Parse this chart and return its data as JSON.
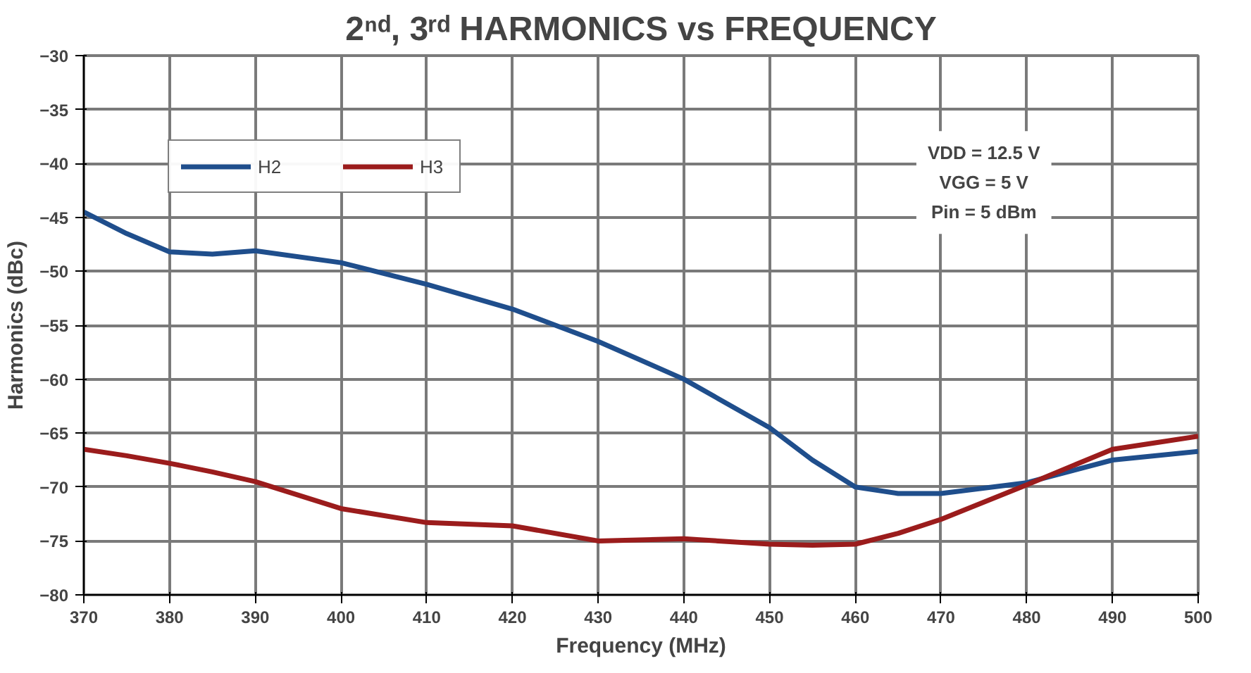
{
  "chart_data": {
    "type": "line",
    "title": "2ⁿᵈ, 3ʳᵈ HARMONICS vs FREQUENCY",
    "xlabel": "Frequency (MHz)",
    "ylabel": "Harmonics (dBc)",
    "x": [
      370,
      375,
      380,
      385,
      390,
      400,
      410,
      420,
      430,
      440,
      450,
      455,
      460,
      465,
      470,
      480,
      490,
      500
    ],
    "series": [
      {
        "name": "H2",
        "color": "#1f4e8c",
        "values": [
          -44.5,
          -46.5,
          -48.2,
          -48.4,
          -48.1,
          -49.2,
          -51.2,
          -53.5,
          -56.5,
          -60,
          -64.5,
          -67.5,
          -70,
          -70.6,
          -70.6,
          -69.6,
          -67.5,
          -66.7
        ]
      },
      {
        "name": "H3",
        "color": "#9b1c1c",
        "values": [
          -66.5,
          -67.1,
          -67.8,
          -68.6,
          -69.5,
          -72,
          -73.3,
          -73.6,
          -75,
          -74.8,
          -75.3,
          -75.4,
          -75.3,
          -74.3,
          -73,
          -69.8,
          -66.5,
          -65.3
        ]
      }
    ],
    "xlim": [
      370,
      500
    ],
    "xticks": [
      370,
      380,
      390,
      400,
      410,
      420,
      430,
      440,
      450,
      460,
      470,
      480,
      490,
      500
    ],
    "ylim": [
      -80,
      -30
    ],
    "yticks": [
      -80,
      -75,
      -70,
      -65,
      -60,
      -55,
      -50,
      -45,
      -40,
      -35,
      -30
    ],
    "grid": true,
    "legend": "top left",
    "marker": "none",
    "line_style": "solid",
    "annotations": [
      "VDD = 12.5 V\nVGG = 5 V\nPin = 5 dBm"
    ]
  }
}
